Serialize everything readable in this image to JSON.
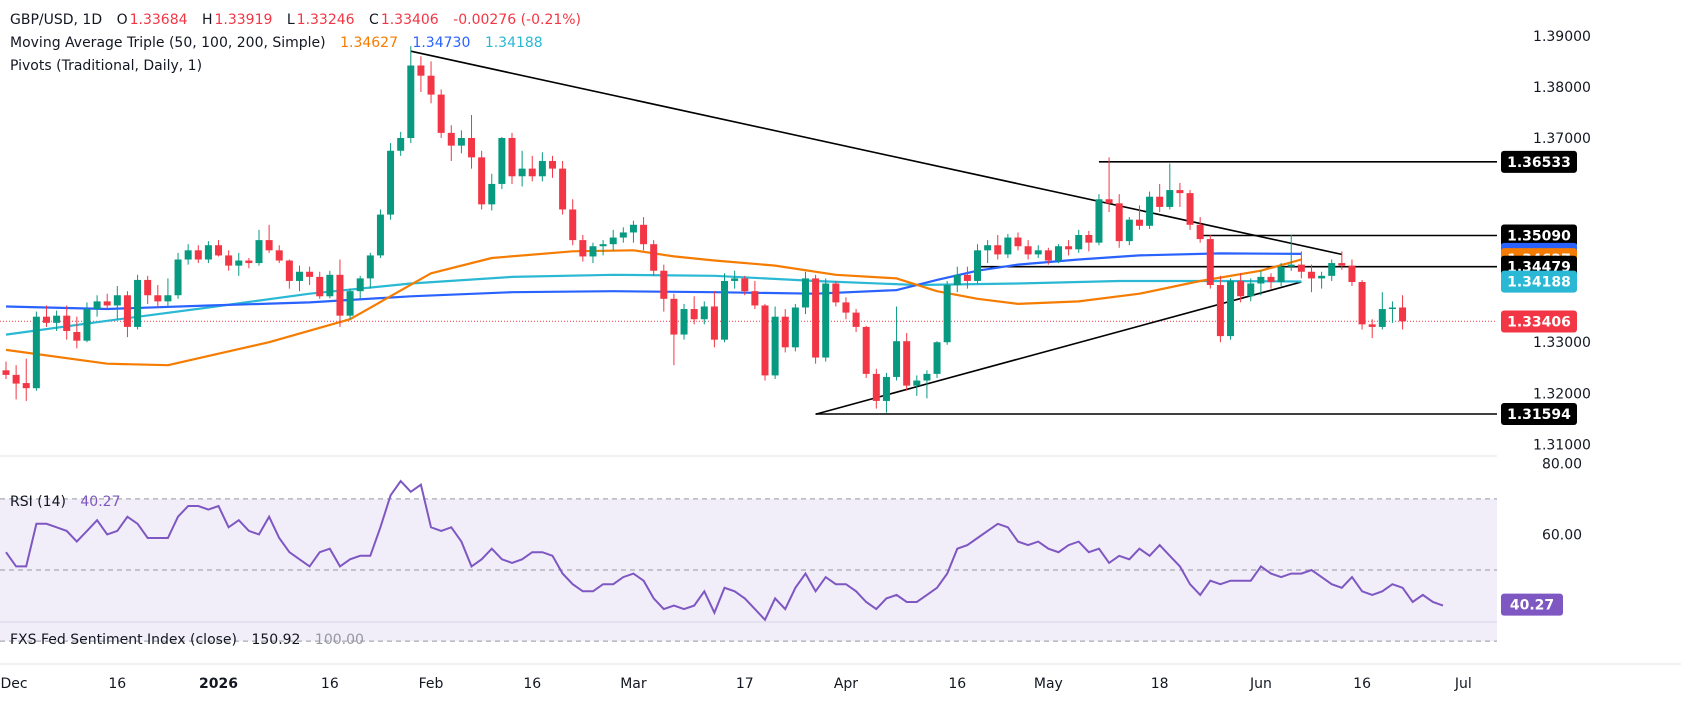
{
  "header": {
    "symbol": "GBP/USD, 1D",
    "o_label": "O",
    "o_value": "1.33684",
    "h_label": "H",
    "h_value": "1.33919",
    "l_label": "L",
    "l_value": "1.33246",
    "c_label": "C",
    "c_value": "1.33406",
    "change": "-0.00276 (-0.21%)"
  },
  "indicators": {
    "ma_label": "Moving Average Triple (50, 100, 200, Simple)",
    "ma50_value": "1.34627",
    "ma100_value": "1.34730",
    "ma200_value": "1.34188",
    "pivots_label": "Pivots (Traditional, Daily, 1)",
    "rsi_label": "RSI (14)",
    "rsi_value": "40.27",
    "fxs_label": "FXS Fed Sentiment Index (close)",
    "fxs_value": "150.92",
    "fxs_value2": "100.00"
  },
  "colors": {
    "up": "#089981",
    "down": "#f23645",
    "ma50": "#f57c00",
    "ma100": "#2962ff",
    "ma200": "#2ab8d4",
    "rsi": "#7e57c2",
    "trendline": "#000000"
  },
  "chart_data": {
    "type": "candlestick",
    "price_axis": {
      "ticks": [
        "1.39000",
        "1.38000",
        "1.37000",
        "1.35090",
        "1.34730",
        "1.34627",
        "1.34479",
        "1.34188",
        "1.33406",
        "1.33000",
        "1.32000",
        "1.31594",
        "1.31000"
      ],
      "ylim": [
        1.3085,
        1.3935
      ]
    },
    "x_axis": {
      "labels": [
        "Dec",
        "16",
        "2026",
        "16",
        "Feb",
        "16",
        "Mar",
        "17",
        "Apr",
        "16",
        "May",
        "18",
        "Jun",
        "16",
        "Jul"
      ],
      "label_index": [
        0,
        11,
        21,
        32,
        42,
        52,
        62,
        73,
        83,
        94,
        103,
        114,
        124,
        134,
        144
      ],
      "total_slots": 148
    },
    "price_badges": [
      {
        "value": "1.36533",
        "style": "dark"
      },
      {
        "value": "1.35090",
        "style": "dark"
      },
      {
        "value": "1.34730",
        "style": "ma100"
      },
      {
        "value": "1.34627",
        "style": "ma50"
      },
      {
        "value": "1.34479",
        "style": "dark"
      },
      {
        "value": "1.34188",
        "style": "ma200"
      },
      {
        "value": "1.33406",
        "style": "down"
      },
      {
        "value": "1.31594",
        "style": "dark"
      }
    ],
    "horizontal_levels": [
      {
        "value": 1.36533,
        "from": 108
      },
      {
        "value": 1.3509,
        "from": 118
      },
      {
        "value": 1.34479,
        "from": 96
      },
      {
        "value": 1.31594,
        "from": 80
      }
    ],
    "trendlines": [
      {
        "x1": 40,
        "y1": 1.387,
        "x2": 132,
        "y2": 1.3472
      },
      {
        "x1": 80,
        "y1": 1.3159,
        "x2": 128,
        "y2": 1.3418
      }
    ],
    "candles": [
      [
        1.3245,
        1.3262,
        1.3228,
        1.3236
      ],
      [
        1.3236,
        1.3255,
        1.3188,
        1.3219
      ],
      [
        1.322,
        1.3268,
        1.3185,
        1.321
      ],
      [
        1.321,
        1.336,
        1.3205,
        1.335
      ],
      [
        1.335,
        1.3372,
        1.333,
        1.3338
      ],
      [
        1.3338,
        1.3362,
        1.3322,
        1.3352
      ],
      [
        1.3352,
        1.3372,
        1.3305,
        1.3322
      ],
      [
        1.332,
        1.335,
        1.3288,
        1.3303
      ],
      [
        1.3303,
        1.3378,
        1.33,
        1.3365
      ],
      [
        1.3365,
        1.3392,
        1.335,
        1.338
      ],
      [
        1.338,
        1.3395,
        1.3365,
        1.3372
      ],
      [
        1.3372,
        1.341,
        1.3345,
        1.3392
      ],
      [
        1.3392,
        1.34,
        1.331,
        1.333
      ],
      [
        1.333,
        1.3432,
        1.3325,
        1.3422
      ],
      [
        1.3422,
        1.343,
        1.3375,
        1.3392
      ],
      [
        1.3392,
        1.3412,
        1.3368,
        1.338
      ],
      [
        1.338,
        1.3425,
        1.337,
        1.3392
      ],
      [
        1.3392,
        1.3475,
        1.3385,
        1.3462
      ],
      [
        1.3462,
        1.3492,
        1.3452,
        1.348
      ],
      [
        1.348,
        1.349,
        1.3455,
        1.3462
      ],
      [
        1.3462,
        1.3498,
        1.3455,
        1.349
      ],
      [
        1.349,
        1.35,
        1.3468,
        1.347
      ],
      [
        1.347,
        1.348,
        1.344,
        1.345
      ],
      [
        1.345,
        1.3475,
        1.343,
        1.346
      ],
      [
        1.346,
        1.3465,
        1.3445,
        1.3455
      ],
      [
        1.3455,
        1.352,
        1.345,
        1.35
      ],
      [
        1.35,
        1.353,
        1.3475,
        1.348
      ],
      [
        1.348,
        1.349,
        1.3455,
        1.346
      ],
      [
        1.346,
        1.3462,
        1.3405,
        1.342
      ],
      [
        1.342,
        1.345,
        1.34,
        1.3438
      ],
      [
        1.3438,
        1.3448,
        1.3412,
        1.3428
      ],
      [
        1.3428,
        1.3438,
        1.3385,
        1.339
      ],
      [
        1.339,
        1.344,
        1.3386,
        1.3432
      ],
      [
        1.3432,
        1.3462,
        1.333,
        1.3352
      ],
      [
        1.3352,
        1.3405,
        1.3345,
        1.34
      ],
      [
        1.34,
        1.343,
        1.3385,
        1.3425
      ],
      [
        1.3425,
        1.3475,
        1.3405,
        1.347
      ],
      [
        1.347,
        1.356,
        1.3465,
        1.355
      ],
      [
        1.355,
        1.369,
        1.354,
        1.3675
      ],
      [
        1.3675,
        1.3712,
        1.3665,
        1.37
      ],
      [
        1.37,
        1.388,
        1.369,
        1.3842
      ],
      [
        1.3842,
        1.386,
        1.379,
        1.3822
      ],
      [
        1.3822,
        1.385,
        1.3768,
        1.3785
      ],
      [
        1.3785,
        1.3795,
        1.37,
        1.371
      ],
      [
        1.371,
        1.3725,
        1.3655,
        1.3685
      ],
      [
        1.3685,
        1.3715,
        1.367,
        1.37
      ],
      [
        1.37,
        1.3745,
        1.364,
        1.3662
      ],
      [
        1.3662,
        1.3675,
        1.356,
        1.357
      ],
      [
        1.357,
        1.363,
        1.3558,
        1.361
      ],
      [
        1.361,
        1.3702,
        1.36,
        1.37
      ],
      [
        1.37,
        1.371,
        1.361,
        1.3625
      ],
      [
        1.3625,
        1.3675,
        1.3605,
        1.364
      ],
      [
        1.364,
        1.3665,
        1.3615,
        1.3625
      ],
      [
        1.3625,
        1.3672,
        1.3615,
        1.3655
      ],
      [
        1.3655,
        1.3665,
        1.3622,
        1.364
      ],
      [
        1.364,
        1.3655,
        1.355,
        1.356
      ],
      [
        1.356,
        1.358,
        1.349,
        1.35
      ],
      [
        1.35,
        1.351,
        1.3458,
        1.3468
      ],
      [
        1.3468,
        1.3495,
        1.3455,
        1.3488
      ],
      [
        1.3488,
        1.35,
        1.347,
        1.3492
      ],
      [
        1.3492,
        1.352,
        1.348,
        1.3505
      ],
      [
        1.3505,
        1.3525,
        1.3495,
        1.3515
      ],
      [
        1.3515,
        1.3538,
        1.3495,
        1.353
      ],
      [
        1.353,
        1.3545,
        1.348,
        1.3492
      ],
      [
        1.3492,
        1.35,
        1.343,
        1.344
      ],
      [
        1.344,
        1.3452,
        1.336,
        1.3385
      ],
      [
        1.3385,
        1.3395,
        1.3255,
        1.3315
      ],
      [
        1.3315,
        1.3375,
        1.3305,
        1.3365
      ],
      [
        1.3365,
        1.339,
        1.3335,
        1.3345
      ],
      [
        1.3345,
        1.338,
        1.3335,
        1.337
      ],
      [
        1.337,
        1.34,
        1.329,
        1.3305
      ],
      [
        1.3305,
        1.3435,
        1.33,
        1.342
      ],
      [
        1.342,
        1.344,
        1.3405,
        1.3425
      ],
      [
        1.3425,
        1.343,
        1.3392,
        1.34
      ],
      [
        1.34,
        1.342,
        1.3365,
        1.3372
      ],
      [
        1.3372,
        1.3375,
        1.3225,
        1.3235
      ],
      [
        1.3235,
        1.337,
        1.3228,
        1.335
      ],
      [
        1.335,
        1.3365,
        1.328,
        1.329
      ],
      [
        1.329,
        1.3375,
        1.3282,
        1.3368
      ],
      [
        1.3368,
        1.3438,
        1.3355,
        1.3425
      ],
      [
        1.3425,
        1.3432,
        1.3258,
        1.327
      ],
      [
        1.327,
        1.3425,
        1.3262,
        1.3415
      ],
      [
        1.3415,
        1.342,
        1.337,
        1.3378
      ],
      [
        1.3378,
        1.3388,
        1.3345,
        1.3358
      ],
      [
        1.3358,
        1.3365,
        1.332,
        1.333
      ],
      [
        1.333,
        1.3332,
        1.323,
        1.3238
      ],
      [
        1.3238,
        1.3248,
        1.317,
        1.3185
      ],
      [
        1.3185,
        1.324,
        1.3162,
        1.3232
      ],
      [
        1.3232,
        1.337,
        1.3225,
        1.3302
      ],
      [
        1.3302,
        1.3318,
        1.3205,
        1.3215
      ],
      [
        1.3215,
        1.3235,
        1.3195,
        1.3225
      ],
      [
        1.3225,
        1.3245,
        1.319,
        1.3238
      ],
      [
        1.3238,
        1.3302,
        1.323,
        1.33
      ],
      [
        1.33,
        1.342,
        1.3295,
        1.3412
      ],
      [
        1.3412,
        1.3448,
        1.3398,
        1.3432
      ],
      [
        1.3432,
        1.3448,
        1.3405,
        1.342
      ],
      [
        1.342,
        1.3492,
        1.3415,
        1.348
      ],
      [
        1.348,
        1.35,
        1.3455,
        1.349
      ],
      [
        1.349,
        1.351,
        1.3462,
        1.3472
      ],
      [
        1.3472,
        1.3512,
        1.3465,
        1.3505
      ],
      [
        1.3505,
        1.3515,
        1.348,
        1.3488
      ],
      [
        1.3488,
        1.35,
        1.3462,
        1.3472
      ],
      [
        1.3472,
        1.349,
        1.3465,
        1.348
      ],
      [
        1.348,
        1.3485,
        1.3452,
        1.346
      ],
      [
        1.346,
        1.3492,
        1.3455,
        1.3488
      ],
      [
        1.3488,
        1.35,
        1.347,
        1.3482
      ],
      [
        1.3482,
        1.352,
        1.3475,
        1.351
      ],
      [
        1.351,
        1.3518,
        1.3478,
        1.3495
      ],
      [
        1.3495,
        1.359,
        1.349,
        1.358
      ],
      [
        1.358,
        1.3662,
        1.3555,
        1.3572
      ],
      [
        1.3572,
        1.359,
        1.3485,
        1.3498
      ],
      [
        1.3498,
        1.3545,
        1.349,
        1.354
      ],
      [
        1.354,
        1.3568,
        1.352,
        1.3528
      ],
      [
        1.3528,
        1.3595,
        1.3522,
        1.3585
      ],
      [
        1.3585,
        1.361,
        1.3555,
        1.3565
      ],
      [
        1.3565,
        1.365,
        1.356,
        1.3598
      ],
      [
        1.3598,
        1.3612,
        1.3565,
        1.3592
      ],
      [
        1.3592,
        1.3598,
        1.352,
        1.353
      ],
      [
        1.353,
        1.3545,
        1.3495,
        1.3502
      ],
      [
        1.3502,
        1.351,
        1.3405,
        1.3412
      ],
      [
        1.3412,
        1.343,
        1.33,
        1.3312
      ],
      [
        1.3312,
        1.3425,
        1.3305,
        1.342
      ],
      [
        1.342,
        1.3435,
        1.3378,
        1.339
      ],
      [
        1.339,
        1.3425,
        1.338,
        1.3415
      ],
      [
        1.3415,
        1.344,
        1.3392,
        1.3428
      ],
      [
        1.3428,
        1.3435,
        1.3405,
        1.3418
      ],
      [
        1.3418,
        1.3455,
        1.341,
        1.3448
      ],
      [
        1.3448,
        1.351,
        1.344,
        1.3452
      ],
      [
        1.3452,
        1.3478,
        1.3425,
        1.3438
      ],
      [
        1.3438,
        1.3452,
        1.3398,
        1.3425
      ],
      [
        1.3425,
        1.3438,
        1.3405,
        1.343
      ],
      [
        1.343,
        1.3462,
        1.342,
        1.3455
      ],
      [
        1.3455,
        1.3478,
        1.3442,
        1.345
      ],
      [
        1.345,
        1.3462,
        1.341,
        1.3418
      ],
      [
        1.3418,
        1.3422,
        1.3325,
        1.3335
      ],
      [
        1.3335,
        1.3345,
        1.3308,
        1.333
      ],
      [
        1.333,
        1.3398,
        1.3325,
        1.3365
      ],
      [
        1.3365,
        1.338,
        1.3338,
        1.3368
      ],
      [
        1.3368,
        1.3392,
        1.3325,
        1.3341
      ]
    ],
    "ma50": [
      [
        0,
        1.3285
      ],
      [
        10,
        1.3258
      ],
      [
        16,
        1.3255
      ],
      [
        26,
        1.33
      ],
      [
        34,
        1.3345
      ],
      [
        42,
        1.3435
      ],
      [
        48,
        1.3465
      ],
      [
        56,
        1.3478
      ],
      [
        62,
        1.348
      ],
      [
        66,
        1.3468
      ],
      [
        70,
        1.346
      ],
      [
        76,
        1.345
      ],
      [
        82,
        1.3432
      ],
      [
        88,
        1.3425
      ],
      [
        92,
        1.34
      ],
      [
        96,
        1.3385
      ],
      [
        100,
        1.3375
      ],
      [
        106,
        1.338
      ],
      [
        112,
        1.3395
      ],
      [
        118,
        1.342
      ],
      [
        124,
        1.344
      ],
      [
        128,
        1.3462
      ]
    ],
    "ma100": [
      [
        0,
        1.337
      ],
      [
        10,
        1.3365
      ],
      [
        20,
        1.3372
      ],
      [
        30,
        1.3378
      ],
      [
        40,
        1.339
      ],
      [
        50,
        1.3398
      ],
      [
        60,
        1.34
      ],
      [
        70,
        1.3398
      ],
      [
        80,
        1.3395
      ],
      [
        88,
        1.3402
      ],
      [
        92,
        1.3422
      ],
      [
        96,
        1.344
      ],
      [
        100,
        1.3452
      ],
      [
        106,
        1.3462
      ],
      [
        112,
        1.347
      ],
      [
        120,
        1.3474
      ],
      [
        128,
        1.3473
      ]
    ],
    "ma200": [
      [
        0,
        1.3315
      ],
      [
        10,
        1.3342
      ],
      [
        20,
        1.3368
      ],
      [
        30,
        1.3395
      ],
      [
        40,
        1.3415
      ],
      [
        50,
        1.3428
      ],
      [
        60,
        1.3432
      ],
      [
        70,
        1.343
      ],
      [
        80,
        1.342
      ],
      [
        90,
        1.3412
      ],
      [
        100,
        1.3415
      ],
      [
        110,
        1.342
      ],
      [
        120,
        1.342
      ],
      [
        128,
        1.3419
      ]
    ],
    "rsi": {
      "ticks": [
        "80.00",
        "60.00"
      ],
      "ylim": [
        36.5,
        81.5
      ],
      "band": [
        30,
        70
      ],
      "mid": 50,
      "value_label": "40.27",
      "values": [
        55,
        51,
        51,
        63,
        63,
        62,
        61,
        58,
        61,
        64,
        60,
        61,
        65,
        63,
        59,
        59,
        59,
        65,
        68,
        68,
        67,
        68,
        62,
        64,
        61,
        60,
        65,
        59,
        55,
        53,
        51,
        55,
        56,
        51,
        53,
        54,
        54,
        62,
        71,
        75,
        72,
        74,
        62,
        61,
        62,
        58,
        51,
        53,
        56,
        53,
        52,
        53,
        55,
        55,
        54,
        49,
        46,
        44,
        44,
        46,
        46,
        48,
        49,
        47,
        42,
        39,
        40,
        39,
        40,
        44,
        38,
        45,
        44,
        42,
        39,
        36,
        42,
        39,
        45,
        49,
        44,
        48,
        46,
        46,
        44,
        41,
        39,
        42,
        43,
        41,
        41,
        43,
        45,
        49,
        56,
        57,
        59,
        61,
        63,
        62,
        58,
        57,
        58,
        56,
        55,
        57,
        58,
        55,
        56,
        52,
        54,
        53,
        56,
        54,
        57,
        54,
        51,
        46,
        43,
        47,
        46,
        47,
        47,
        47,
        51,
        49,
        48,
        49,
        49,
        50,
        48,
        46,
        45,
        48,
        44,
        43,
        44,
        46,
        45,
        41,
        43,
        41,
        40
      ]
    }
  }
}
